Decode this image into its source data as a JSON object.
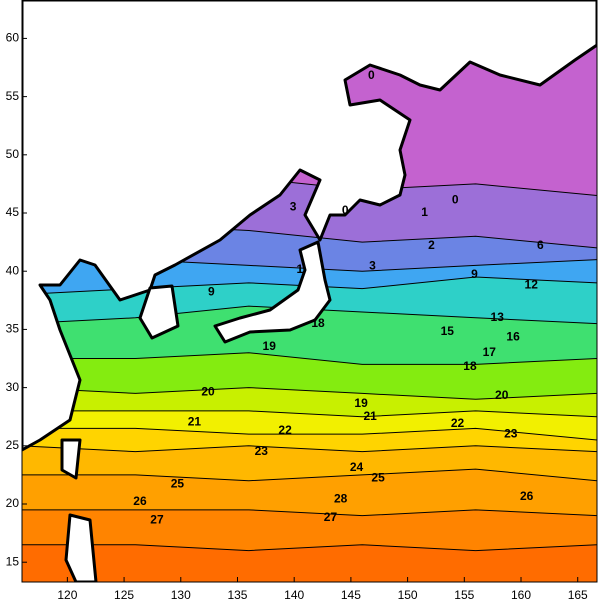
{
  "map": {
    "type": "contour",
    "xlim": [
      116,
      166.7
    ],
    "ylim": [
      13.3,
      63.3
    ],
    "xticks": [
      120,
      125,
      130,
      135,
      140,
      145,
      150,
      155,
      160,
      165
    ],
    "yticks": [
      15,
      20,
      25,
      30,
      35,
      40,
      45,
      50,
      55,
      60
    ],
    "background_color": "#c462cf",
    "lon": [
      116,
      126,
      136,
      146,
      156,
      166.7
    ],
    "isotherms": [
      {
        "value": 3,
        "color": "#9c6fd8",
        "lat": [
          48,
          48,
          48,
          47,
          47.5,
          46.5
        ]
      },
      {
        "value": 6,
        "color": "#6b84e4",
        "lat": [
          44,
          44,
          43.5,
          42.5,
          43,
          42
        ]
      },
      {
        "value": 9,
        "color": "#3fa6f2",
        "lat": [
          41,
          41,
          40.5,
          40,
          40.5,
          41
        ]
      },
      {
        "value": 12,
        "color": "#2ed0c8",
        "lat": [
          38,
          38.5,
          39,
          38.5,
          39.5,
          39
        ]
      },
      {
        "value": 15,
        "color": "#3fe070",
        "lat": [
          35.5,
          36,
          37,
          36.5,
          36,
          35.5
        ]
      },
      {
        "value": 18,
        "color": "#84ec10",
        "lat": [
          32.5,
          32.5,
          33,
          32,
          32,
          32.5
        ]
      },
      {
        "value": 20,
        "color": "#c8f000",
        "lat": [
          30,
          29.5,
          30,
          29.5,
          29,
          29.5
        ]
      },
      {
        "value": 21,
        "color": "#f2f000",
        "lat": [
          28,
          28,
          28,
          27.5,
          28,
          27.5
        ]
      },
      {
        "value": 22,
        "color": "#ffd400",
        "lat": [
          26.5,
          26.5,
          26,
          26,
          26.5,
          25.5
        ]
      },
      {
        "value": 23,
        "color": "#ffb800",
        "lat": [
          25,
          24.5,
          25,
          24.5,
          25,
          24.5
        ]
      },
      {
        "value": 24,
        "color": "#ffa000",
        "lat": [
          22.5,
          22.5,
          22,
          22.5,
          23,
          22
        ]
      },
      {
        "value": 26,
        "color": "#ff8400",
        "lat": [
          19.5,
          19.5,
          19.5,
          19,
          19.5,
          19
        ]
      },
      {
        "value": 27,
        "color": "#ff6c00",
        "lat": [
          16.5,
          16.5,
          16,
          16.5,
          16,
          16.5
        ]
      }
    ],
    "contour_labels": [
      {
        "value": 0,
        "lon": 146.8,
        "lat": 56.8
      },
      {
        "value": 0,
        "lon": 144.5,
        "lat": 45.2
      },
      {
        "value": 0,
        "lon": 154.2,
        "lat": 46.1
      },
      {
        "value": 1,
        "lon": 151.5,
        "lat": 45.0
      },
      {
        "value": 3,
        "lon": 139.9,
        "lat": 45.5
      },
      {
        "value": 2,
        "lon": 152.1,
        "lat": 42.2
      },
      {
        "value": 3,
        "lon": 146.9,
        "lat": 40.4
      },
      {
        "value": 6,
        "lon": 161.7,
        "lat": 42.2
      },
      {
        "value": 9,
        "lon": 155.9,
        "lat": 39.7
      },
      {
        "value": 9,
        "lon": 132.7,
        "lat": 38.2
      },
      {
        "value": 1,
        "lon": 140.5,
        "lat": 40.1
      },
      {
        "value": 12,
        "lon": 160.9,
        "lat": 38.8
      },
      {
        "value": 13,
        "lon": 157.9,
        "lat": 36.0
      },
      {
        "value": 15,
        "lon": 153.5,
        "lat": 34.8
      },
      {
        "value": 16,
        "lon": 159.3,
        "lat": 34.3
      },
      {
        "value": 17,
        "lon": 157.2,
        "lat": 33.0
      },
      {
        "value": 18,
        "lon": 155.5,
        "lat": 31.8
      },
      {
        "value": 18,
        "lon": 142.1,
        "lat": 35.5
      },
      {
        "value": 19,
        "lon": 137.8,
        "lat": 33.5
      },
      {
        "value": 19,
        "lon": 145.9,
        "lat": 28.6
      },
      {
        "value": 20,
        "lon": 158.3,
        "lat": 29.3
      },
      {
        "value": 20,
        "lon": 132.4,
        "lat": 29.6
      },
      {
        "value": 21,
        "lon": 146.7,
        "lat": 27.5
      },
      {
        "value": 21,
        "lon": 131.2,
        "lat": 27.0
      },
      {
        "value": 22,
        "lon": 139.2,
        "lat": 26.3
      },
      {
        "value": 22,
        "lon": 154.4,
        "lat": 26.9
      },
      {
        "value": 23,
        "lon": 159.1,
        "lat": 26.0
      },
      {
        "value": 23,
        "lon": 137.1,
        "lat": 24.5
      },
      {
        "value": 24,
        "lon": 145.5,
        "lat": 23.1
      },
      {
        "value": 25,
        "lon": 147.4,
        "lat": 22.2
      },
      {
        "value": 25,
        "lon": 129.7,
        "lat": 21.7
      },
      {
        "value": 26,
        "lon": 160.5,
        "lat": 20.6
      },
      {
        "value": 26,
        "lon": 126.4,
        "lat": 20.2
      },
      {
        "value": 27,
        "lon": 143.2,
        "lat": 18.8
      },
      {
        "value": 27,
        "lon": 127.9,
        "lat": 18.6
      },
      {
        "value": 28,
        "lon": 144.1,
        "lat": 20.4
      }
    ]
  }
}
